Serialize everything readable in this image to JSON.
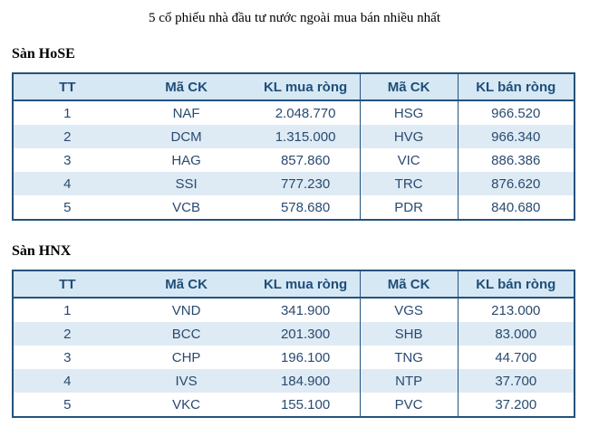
{
  "page": {
    "title": "5 cổ phiếu nhà đầu tư nước ngoài mua bán nhiều nhất"
  },
  "colors": {
    "table_border": "#24527c",
    "header_bg": "#d6e8f4",
    "header_text": "#1f4e79",
    "stripe_bg": "#deebf4",
    "cell_text": "#2a4a70"
  },
  "columns": [
    "TT",
    "Mã CK",
    "KL mua ròng",
    "Mã CK",
    "KL bán ròng"
  ],
  "sections": [
    {
      "label": "Sàn HoSE",
      "rows": [
        [
          "1",
          "NAF",
          "2.048.770",
          "HSG",
          "966.520"
        ],
        [
          "2",
          "DCM",
          "1.315.000",
          "HVG",
          "966.340"
        ],
        [
          "3",
          "HAG",
          "857.860",
          "VIC",
          "886.386"
        ],
        [
          "4",
          "SSI",
          "777.230",
          "TRC",
          "876.620"
        ],
        [
          "5",
          "VCB",
          "578.680",
          "PDR",
          "840.680"
        ]
      ]
    },
    {
      "label": "Sàn HNX",
      "rows": [
        [
          "1",
          "VND",
          "341.900",
          "VGS",
          "213.000"
        ],
        [
          "2",
          "BCC",
          "201.300",
          "SHB",
          "83.000"
        ],
        [
          "3",
          "CHP",
          "196.100",
          "TNG",
          "44.700"
        ],
        [
          "4",
          "IVS",
          "184.900",
          "NTP",
          "37.700"
        ],
        [
          "5",
          "VKC",
          "155.100",
          "PVC",
          "37.200"
        ]
      ]
    }
  ]
}
